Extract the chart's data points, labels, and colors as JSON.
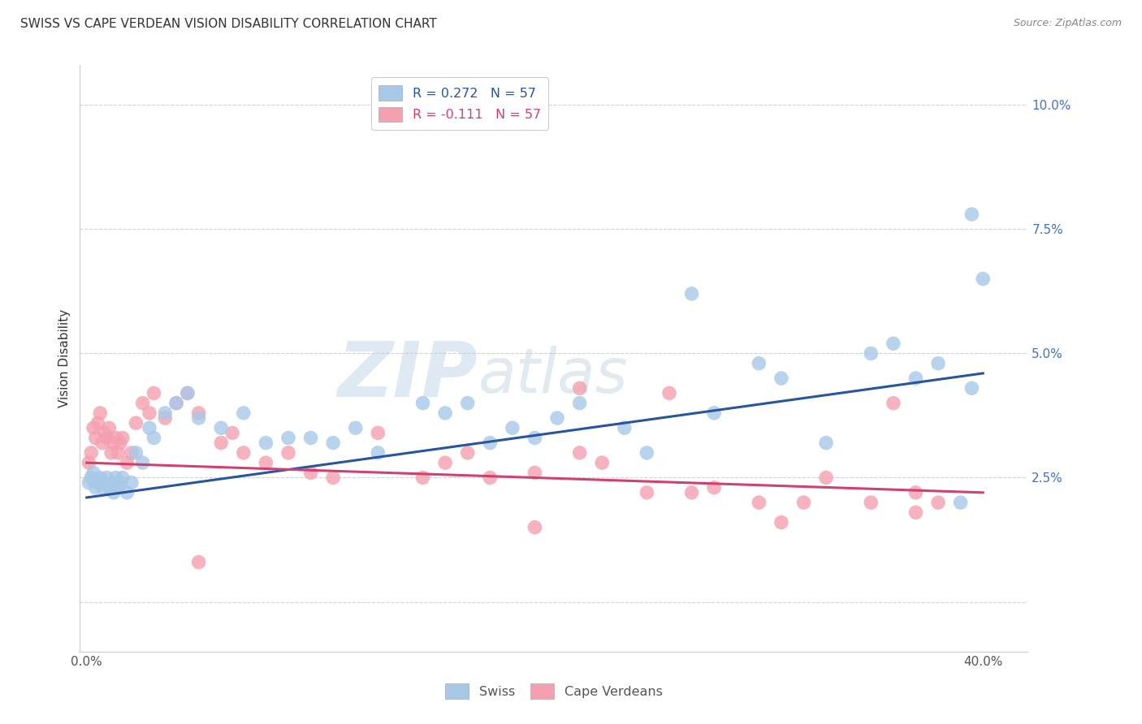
{
  "title": "SWISS VS CAPE VERDEAN VISION DISABILITY CORRELATION CHART",
  "source": "Source: ZipAtlas.com",
  "ylabel": "Vision Disability",
  "yticks": [
    0.0,
    0.025,
    0.05,
    0.075,
    0.1
  ],
  "ytick_labels": [
    "",
    "2.5%",
    "5.0%",
    "7.5%",
    "10.0%"
  ],
  "xticks": [
    0.0,
    0.1,
    0.2,
    0.3,
    0.4
  ],
  "xtick_labels_show": [
    "0.0%",
    "",
    "",
    "",
    "40.0%"
  ],
  "xlim": [
    -0.003,
    0.42
  ],
  "ylim": [
    -0.01,
    0.108
  ],
  "swiss_R": 0.272,
  "swiss_N": 57,
  "cape_R": -0.111,
  "cape_N": 57,
  "swiss_color": "#a8c8e8",
  "cape_color": "#f4a0b0",
  "swiss_line_color": "#2855a0",
  "cape_line_color": "#d04070",
  "background_color": "#ffffff",
  "grid_color": "#cccccc",
  "watermark_zip": "ZIP",
  "watermark_atlas": "atlas",
  "swiss_line_y0": 0.021,
  "swiss_line_y1": 0.046,
  "cape_line_y0": 0.028,
  "cape_line_y1": 0.022,
  "swiss_x": [
    0.001,
    0.002,
    0.003,
    0.004,
    0.005,
    0.006,
    0.007,
    0.008,
    0.009,
    0.01,
    0.011,
    0.012,
    0.013,
    0.014,
    0.015,
    0.016,
    0.018,
    0.02,
    0.022,
    0.025,
    0.028,
    0.03,
    0.035,
    0.04,
    0.045,
    0.05,
    0.06,
    0.07,
    0.08,
    0.09,
    0.1,
    0.11,
    0.12,
    0.13,
    0.15,
    0.16,
    0.17,
    0.18,
    0.19,
    0.2,
    0.21,
    0.22,
    0.24,
    0.25,
    0.27,
    0.28,
    0.3,
    0.31,
    0.33,
    0.35,
    0.36,
    0.37,
    0.38,
    0.39,
    0.395,
    0.4,
    0.395
  ],
  "swiss_y": [
    0.024,
    0.025,
    0.026,
    0.023,
    0.024,
    0.025,
    0.023,
    0.024,
    0.025,
    0.023,
    0.024,
    0.022,
    0.025,
    0.023,
    0.024,
    0.025,
    0.022,
    0.024,
    0.03,
    0.028,
    0.035,
    0.033,
    0.038,
    0.04,
    0.042,
    0.037,
    0.035,
    0.038,
    0.032,
    0.033,
    0.033,
    0.032,
    0.035,
    0.03,
    0.04,
    0.038,
    0.04,
    0.032,
    0.035,
    0.033,
    0.037,
    0.04,
    0.035,
    0.03,
    0.062,
    0.038,
    0.048,
    0.045,
    0.032,
    0.05,
    0.052,
    0.045,
    0.048,
    0.02,
    0.043,
    0.065,
    0.078
  ],
  "cape_x": [
    0.001,
    0.002,
    0.003,
    0.004,
    0.005,
    0.006,
    0.007,
    0.008,
    0.009,
    0.01,
    0.011,
    0.012,
    0.013,
    0.014,
    0.015,
    0.016,
    0.018,
    0.02,
    0.022,
    0.025,
    0.028,
    0.03,
    0.035,
    0.04,
    0.045,
    0.05,
    0.06,
    0.065,
    0.07,
    0.08,
    0.09,
    0.1,
    0.11,
    0.13,
    0.15,
    0.16,
    0.17,
    0.18,
    0.2,
    0.22,
    0.23,
    0.25,
    0.27,
    0.28,
    0.3,
    0.32,
    0.33,
    0.35,
    0.36,
    0.37,
    0.38,
    0.22,
    0.26,
    0.2,
    0.31,
    0.37,
    0.05
  ],
  "cape_y": [
    0.028,
    0.03,
    0.035,
    0.033,
    0.036,
    0.038,
    0.032,
    0.034,
    0.033,
    0.035,
    0.03,
    0.032,
    0.033,
    0.03,
    0.032,
    0.033,
    0.028,
    0.03,
    0.036,
    0.04,
    0.038,
    0.042,
    0.037,
    0.04,
    0.042,
    0.038,
    0.032,
    0.034,
    0.03,
    0.028,
    0.03,
    0.026,
    0.025,
    0.034,
    0.025,
    0.028,
    0.03,
    0.025,
    0.026,
    0.03,
    0.028,
    0.022,
    0.022,
    0.023,
    0.02,
    0.02,
    0.025,
    0.02,
    0.04,
    0.022,
    0.02,
    0.043,
    0.042,
    0.015,
    0.016,
    0.018,
    0.008
  ]
}
